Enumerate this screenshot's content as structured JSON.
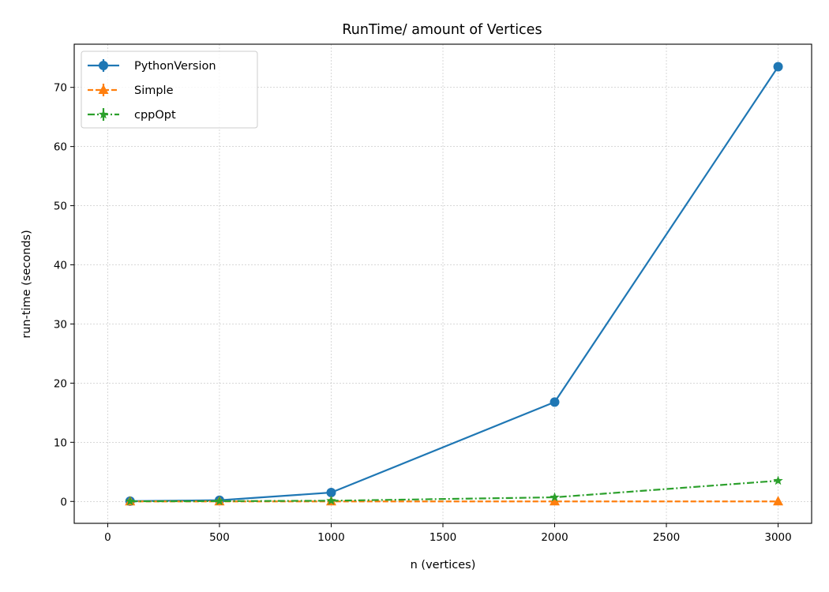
{
  "chart_data": {
    "type": "line",
    "title": "RunTime/ amount of Vertices",
    "xlabel": "n (vertices)",
    "ylabel": "run-time (seconds)",
    "x": [
      100,
      500,
      1000,
      2000,
      3000
    ],
    "xlim": [
      -150,
      3150
    ],
    "ylim": [
      -3.7,
      77.3
    ],
    "xticks": [
      0,
      500,
      1000,
      1500,
      2000,
      2500,
      3000
    ],
    "yticks": [
      0,
      10,
      20,
      30,
      40,
      50,
      60,
      70
    ],
    "grid": true,
    "legend_position": "top-left",
    "series": [
      {
        "name": "PythonVersion",
        "values": [
          0.05,
          0.2,
          1.5,
          16.8,
          73.5
        ],
        "color": "#1f77b4",
        "marker": "circle",
        "line_style": "solid"
      },
      {
        "name": "Simple",
        "values": [
          0.0,
          0.0,
          0.0,
          0.0,
          0.0
        ],
        "color": "#ff7f0e",
        "marker": "triangle",
        "line_style": "dashed"
      },
      {
        "name": "cppOpt",
        "values": [
          0.02,
          0.05,
          0.12,
          0.7,
          3.5
        ],
        "color": "#2ca02c",
        "marker": "star",
        "line_style": "dashdot"
      }
    ]
  }
}
